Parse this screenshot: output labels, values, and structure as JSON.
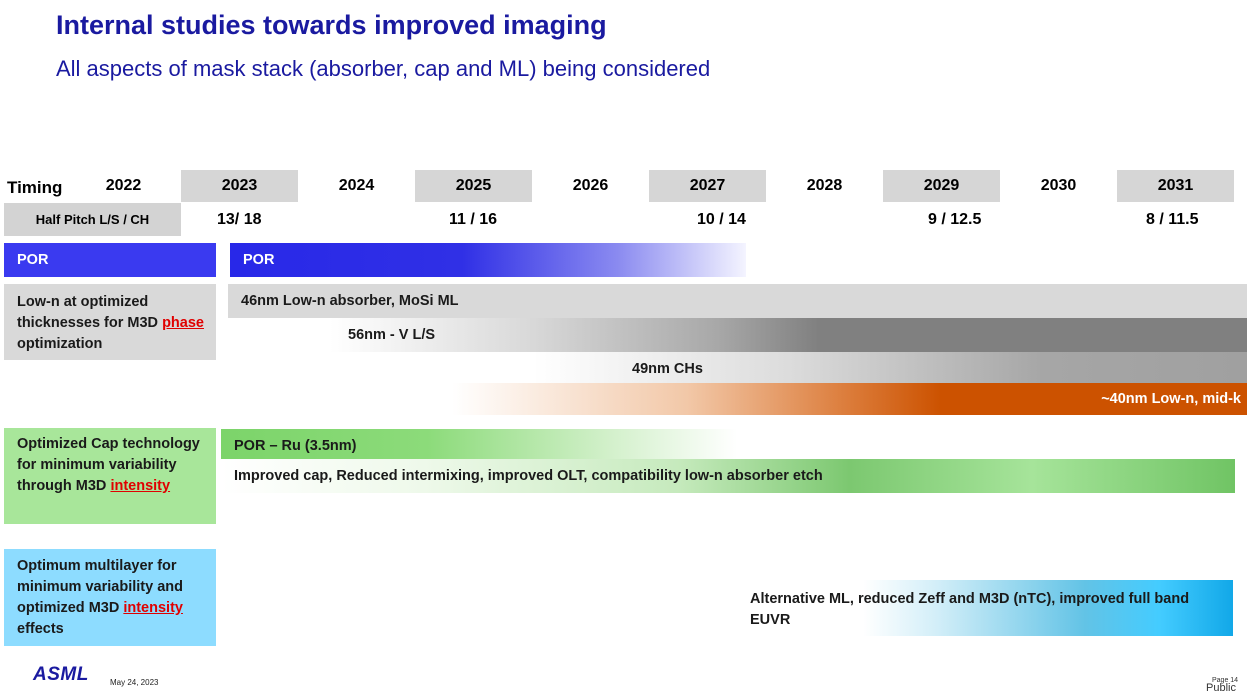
{
  "header": {
    "title": "Internal studies towards improved imaging",
    "subtitle": "All aspects of mask stack (absorber, cap and ML) being considered"
  },
  "timeline": {
    "timing_label": "Timing",
    "years": [
      "2022",
      "2023",
      "2024",
      "2025",
      "2026",
      "2027",
      "2028",
      "2029",
      "2030",
      "2031"
    ],
    "half_pitch_label": "Half Pitch L/S / CH",
    "half_pitch_values": [
      "13/ 18",
      "11 / 16",
      "10 / 14",
      "9 / 12.5",
      "8 / 11.5"
    ]
  },
  "rows": {
    "por": {
      "label": "POR",
      "bar": "POR"
    },
    "lown": {
      "label_pre": "Low-n at optimized thicknesses for M3D ",
      "label_red": "phase",
      "label_post": " optimization",
      "bars": [
        "46nm Low-n absorber, MoSi ML",
        "56nm - V L/S",
        "49nm CHs",
        "~40nm Low-n, mid-k"
      ]
    },
    "cap": {
      "label_pre": "Optimized Cap technology for minimum variability through M3D ",
      "label_red": "intensity",
      "bars": [
        "POR – Ru (3.5nm)",
        "Improved cap,  Reduced intermixing, improved OLT, compatibility low-n absorber etch"
      ]
    },
    "ml": {
      "label_pre": "Optimum multilayer for minimum variability and optimized M3D ",
      "label_red": "intensity",
      "label_post": " effects",
      "bar": "Alternative ML, reduced Zeff and M3D (nTC), improved full band EUVR"
    }
  },
  "footer": {
    "logo": "ASML",
    "date": "May 24, 2023",
    "page": "Page 14",
    "classification": "Public"
  },
  "colors": {
    "title": "#1a1aa0",
    "por_blue": "#3a3af0",
    "orange": "#cc5200",
    "green": "#7cd46a",
    "cyan": "#1eb8f0",
    "red_text": "#e00000"
  }
}
